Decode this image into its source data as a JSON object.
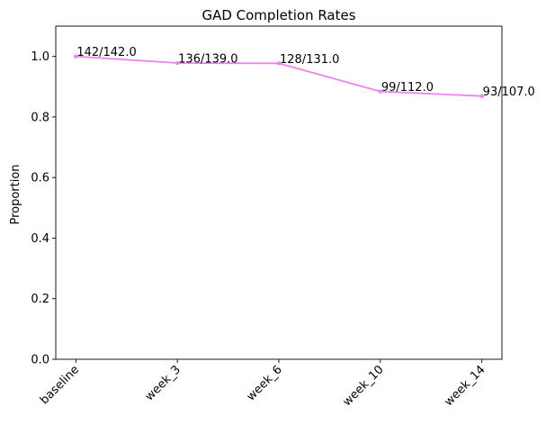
{
  "chart_data": {
    "type": "line",
    "title": "GAD Completion Rates",
    "xlabel": "",
    "ylabel": "Proportion",
    "categories": [
      "baseline",
      "week_3",
      "week_6",
      "week_10",
      "week_14"
    ],
    "series": [
      {
        "values": [
          1.0,
          0.978,
          0.977,
          0.884,
          0.869
        ],
        "labels": [
          "142/142.0",
          "136/139.0",
          "128/131.0",
          "99/112.0",
          "93/107.0"
        ],
        "color": "#ee82ee"
      }
    ],
    "ylim": [
      0.0,
      1.1
    ],
    "yticks": [
      0.0,
      0.2,
      0.4,
      0.6,
      0.8,
      1.0
    ],
    "ytick_labels": [
      "0.0",
      "0.2",
      "0.4",
      "0.6",
      "0.8",
      "1.0"
    ],
    "xtick_rotation": 45,
    "grid": false,
    "legend": "none"
  }
}
